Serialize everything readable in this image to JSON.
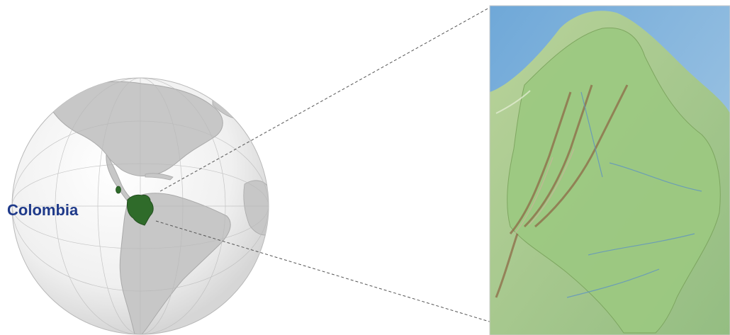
{
  "labels": {
    "country": "Colombia"
  },
  "colors": {
    "highlight": "#2f6b2a",
    "label": "#1f3a8a",
    "ocean_globe": "#eeeeee",
    "land_globe": "#c8c8c8",
    "relief_land": "#9fc48a",
    "relief_ocean": "#7fb0d6"
  },
  "icons": {
    "globe": "orthographic-globe",
    "inset": "relief-map-inset"
  }
}
